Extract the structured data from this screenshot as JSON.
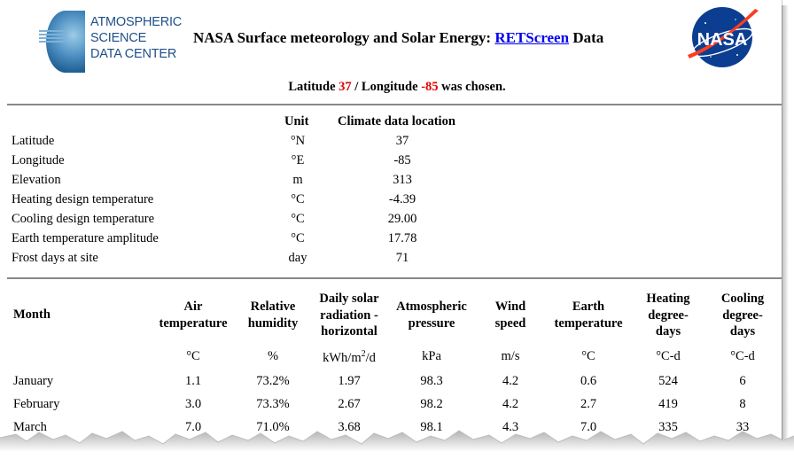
{
  "header": {
    "org_line1": "ATMOSPHERIC",
    "org_line2": "SCIENCE",
    "org_line3": "DATA CENTER",
    "title_prefix": "NASA Surface meteorology and Solar Energy: ",
    "title_link": "RETScreen",
    "title_suffix": " Data",
    "nasa_logo_text": "NASA"
  },
  "chosen": {
    "lat_label": "Latitude ",
    "lat": "37",
    "sep": " / Longitude ",
    "lon": "-85",
    "suffix": " was chosen."
  },
  "location_table": {
    "col_unit": "Unit",
    "col_value": "Climate data location",
    "rows": [
      {
        "label": "Latitude",
        "unit": "°N",
        "value": "37"
      },
      {
        "label": "Longitude",
        "unit": "°E",
        "value": "-85"
      },
      {
        "label": "Elevation",
        "unit": "m",
        "value": "313"
      },
      {
        "label": "Heating design temperature",
        "unit": "°C",
        "value": "-4.39"
      },
      {
        "label": "Cooling design temperature",
        "unit": "°C",
        "value": "29.00"
      },
      {
        "label": "Earth temperature amplitude",
        "unit": "°C",
        "value": "17.78"
      },
      {
        "label": "Frost days at site",
        "unit": "day",
        "value": "71"
      }
    ]
  },
  "monthly_table": {
    "headers": {
      "month": "Month",
      "air1": "Air",
      "air2": "temperature",
      "hum1": "Relative",
      "hum2": "humidity",
      "sol1": "Daily solar",
      "sol2": "radiation -",
      "sol3": "horizontal",
      "atm1": "Atmospheric",
      "atm2": "pressure",
      "wind1": "Wind",
      "wind2": "speed",
      "earth1": "Earth",
      "earth2": "temperature",
      "heat1": "Heating",
      "heat2": "degree-",
      "heat3": "days",
      "cool1": "Cooling",
      "cool2": "degree-",
      "cool3": "days"
    },
    "units": {
      "air": "°C",
      "hum": "%",
      "sol_prefix": "kWh/m",
      "sol_sup": "2",
      "sol_suffix": "/d",
      "atm": "kPa",
      "wind": "m/s",
      "earth": "°C",
      "heat": "°C-d",
      "cool": "°C-d"
    },
    "rows": [
      {
        "month": "January",
        "air": "1.1",
        "hum": "73.2%",
        "sol": "1.97",
        "atm": "98.3",
        "wind": "4.2",
        "earth": "0.6",
        "heat": "524",
        "cool": "6"
      },
      {
        "month": "February",
        "air": "3.0",
        "hum": "73.3%",
        "sol": "2.67",
        "atm": "98.2",
        "wind": "4.2",
        "earth": "2.7",
        "heat": "419",
        "cool": "8"
      },
      {
        "month": "March",
        "air": "7.0",
        "hum": "71.0%",
        "sol": "3.68",
        "atm": "98.1",
        "wind": "4.3",
        "earth": "7.0",
        "heat": "335",
        "cool": "33"
      }
    ]
  }
}
